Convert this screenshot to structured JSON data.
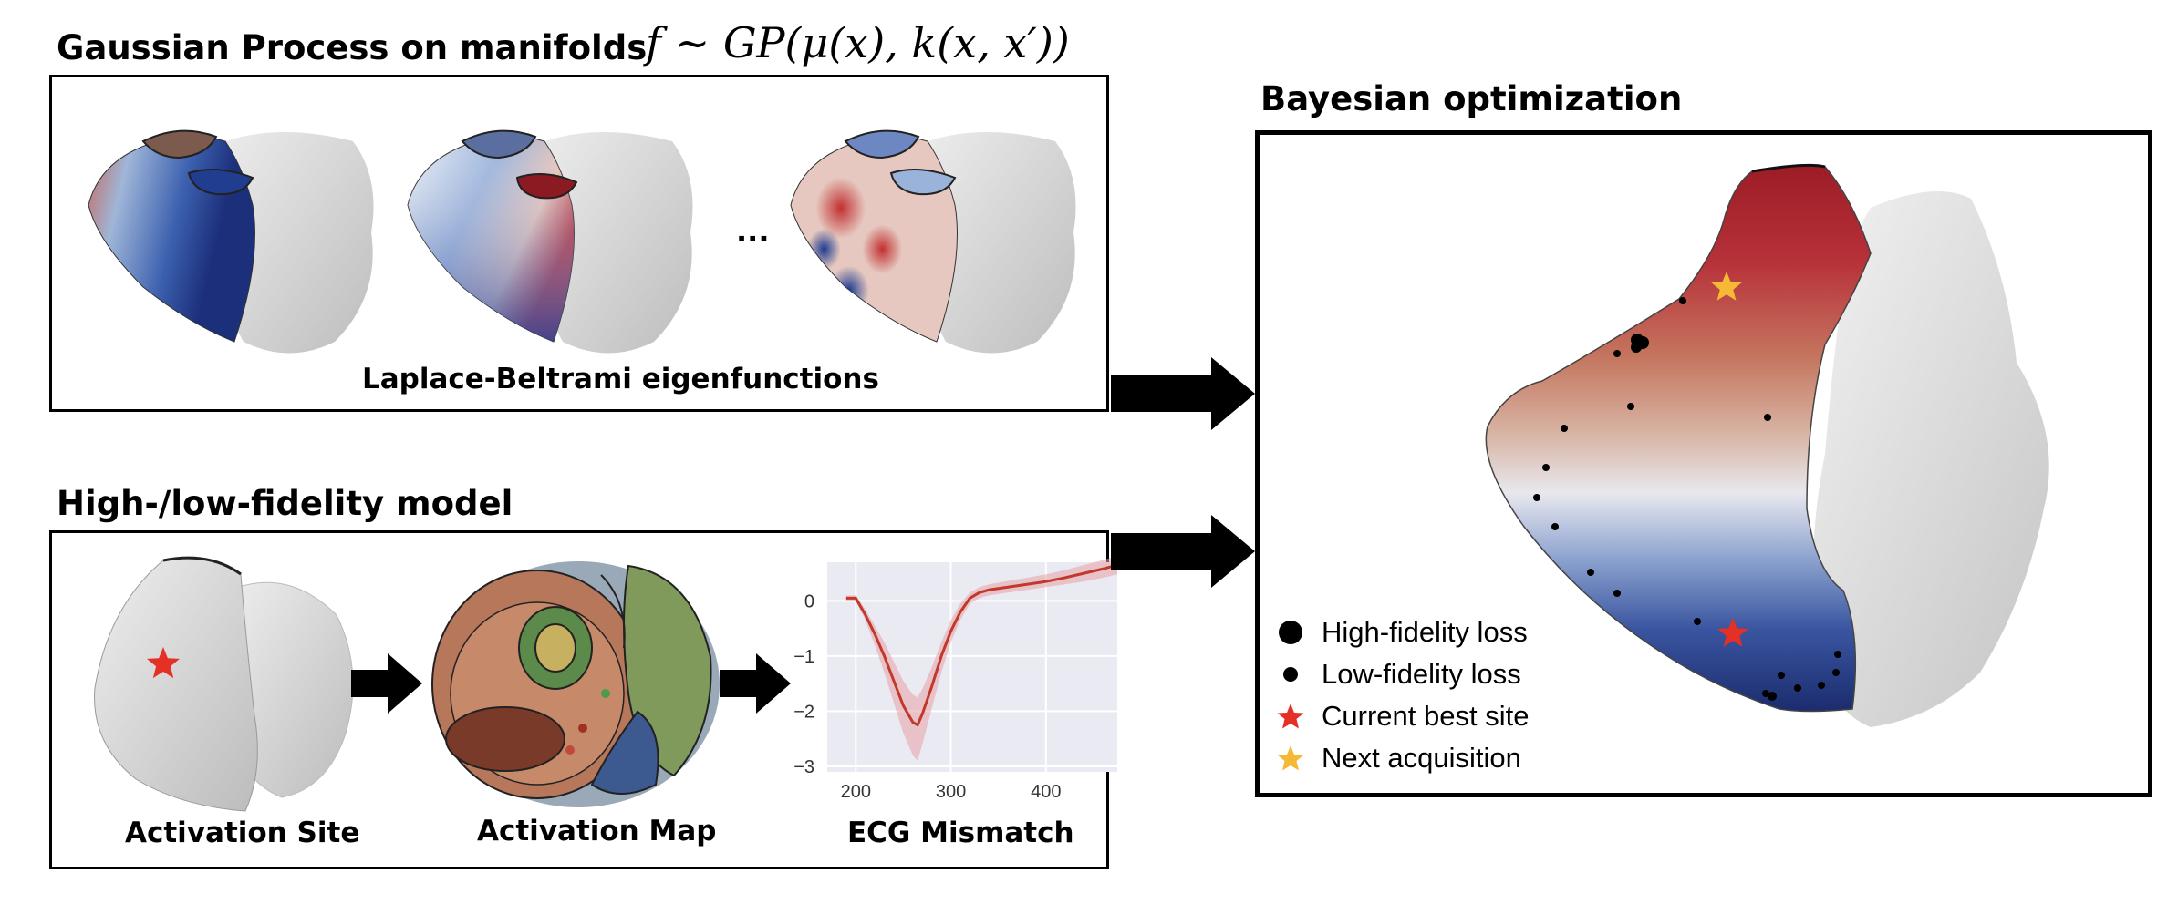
{
  "top_left": {
    "title": "Gaussian Process on manifolds",
    "formula": "f ∼ GP(μ(x), k(x, x′))",
    "ellipsis": "...",
    "caption": "Laplace-Beltrami eigenfunctions"
  },
  "bottom_left": {
    "title": "High-/low-fidelity model",
    "captions": {
      "site": "Activation Site",
      "map": "Activation Map",
      "ecg": "ECG Mismatch"
    }
  },
  "right": {
    "title": "Bayesian optimization",
    "legend": [
      {
        "label": "High-fidelity loss",
        "marker": "large-black-dot"
      },
      {
        "label": "Low-fidelity loss",
        "marker": "small-black-dot"
      },
      {
        "label": "Current best site",
        "marker": "red-star"
      },
      {
        "label": "Next acquisition",
        "marker": "yellow-star"
      }
    ]
  },
  "colors": {
    "red": "#b8202a",
    "blue": "#1e3a8f",
    "white": "#f4f4f4",
    "gray_heart": "#d9d9d9",
    "star_red": "#e53026",
    "star_yellow": "#f5b935"
  },
  "chart_data": {
    "type": "line",
    "title": "",
    "xlabel": "",
    "ylabel": "",
    "xlim": [
      170,
      475
    ],
    "ylim": [
      -3.1,
      0.7
    ],
    "xticks": [
      200,
      300,
      400
    ],
    "yticks": [
      0,
      -1,
      -2,
      -3
    ],
    "xtick_labels": [
      "200",
      "300",
      "400"
    ],
    "ytick_labels": [
      "0",
      "−1",
      "−2",
      "−3"
    ],
    "grid": true,
    "x": [
      190,
      200,
      210,
      220,
      230,
      240,
      250,
      260,
      265,
      270,
      280,
      290,
      300,
      310,
      320,
      330,
      340,
      360,
      380,
      400,
      420,
      440,
      460,
      475
    ],
    "mean": [
      0.05,
      0.05,
      -0.25,
      -0.6,
      -1.0,
      -1.45,
      -1.9,
      -2.2,
      -2.25,
      -2.05,
      -1.55,
      -1.0,
      -0.55,
      -0.2,
      0.05,
      0.15,
      0.2,
      0.25,
      0.3,
      0.35,
      0.42,
      0.5,
      0.58,
      0.65
    ],
    "lower": [
      0.0,
      0.0,
      -0.35,
      -0.8,
      -1.3,
      -1.85,
      -2.4,
      -2.8,
      -2.9,
      -2.6,
      -1.95,
      -1.3,
      -0.75,
      -0.35,
      -0.05,
      0.05,
      0.1,
      0.15,
      0.2,
      0.25,
      0.3,
      0.35,
      0.42,
      0.48
    ],
    "upper": [
      0.1,
      0.1,
      -0.15,
      -0.45,
      -0.75,
      -1.1,
      -1.45,
      -1.7,
      -1.75,
      -1.6,
      -1.2,
      -0.75,
      -0.35,
      -0.05,
      0.15,
      0.25,
      0.3,
      0.36,
      0.42,
      0.48,
      0.56,
      0.65,
      0.74,
      0.82
    ],
    "line_color": "#c0392b",
    "band_color": "#e8a0a8"
  }
}
